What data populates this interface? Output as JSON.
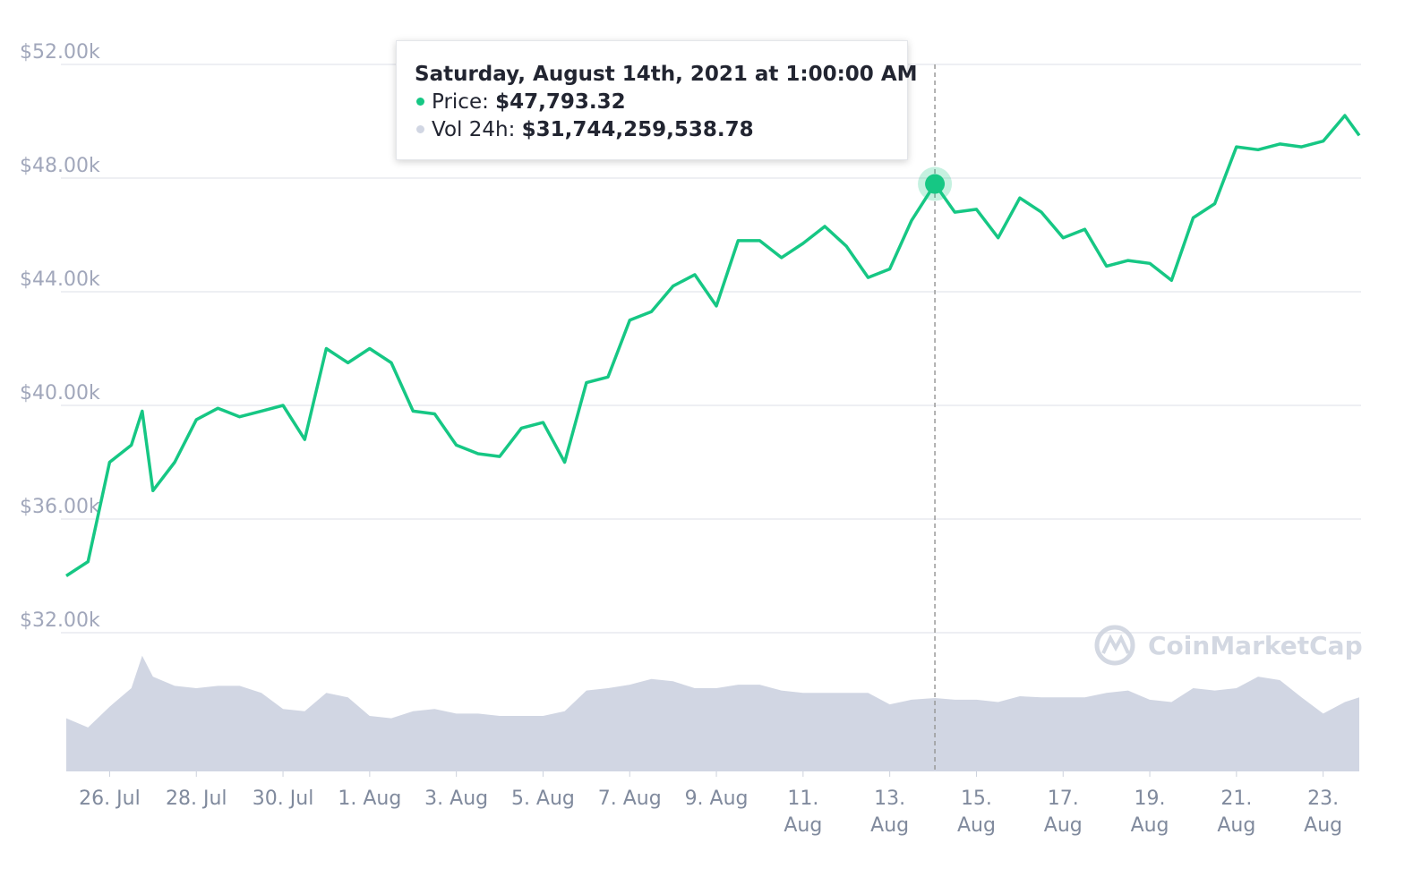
{
  "chart_data": {
    "type": "line",
    "x": [
      "2021-07-25T00:00",
      "2021-07-25T12:00",
      "2021-07-26T00:00",
      "2021-07-26T12:00",
      "2021-07-26T18:00",
      "2021-07-27T00:00",
      "2021-07-27T12:00",
      "2021-07-28T00:00",
      "2021-07-28T12:00",
      "2021-07-29T00:00",
      "2021-07-29T12:00",
      "2021-07-30T00:00",
      "2021-07-30T12:00",
      "2021-07-31T00:00",
      "2021-07-31T12:00",
      "2021-08-01T00:00",
      "2021-08-01T12:00",
      "2021-08-02T00:00",
      "2021-08-02T12:00",
      "2021-08-03T00:00",
      "2021-08-03T12:00",
      "2021-08-04T00:00",
      "2021-08-04T12:00",
      "2021-08-05T00:00",
      "2021-08-05T12:00",
      "2021-08-06T00:00",
      "2021-08-06T12:00",
      "2021-08-07T00:00",
      "2021-08-07T12:00",
      "2021-08-08T00:00",
      "2021-08-08T12:00",
      "2021-08-09T00:00",
      "2021-08-09T12:00",
      "2021-08-10T00:00",
      "2021-08-10T12:00",
      "2021-08-11T00:00",
      "2021-08-11T12:00",
      "2021-08-12T00:00",
      "2021-08-12T12:00",
      "2021-08-13T00:00",
      "2021-08-13T12:00",
      "2021-08-14T01:00",
      "2021-08-14T12:00",
      "2021-08-15T00:00",
      "2021-08-15T12:00",
      "2021-08-16T00:00",
      "2021-08-16T12:00",
      "2021-08-17T00:00",
      "2021-08-17T12:00",
      "2021-08-18T00:00",
      "2021-08-18T12:00",
      "2021-08-19T00:00",
      "2021-08-19T12:00",
      "2021-08-20T00:00",
      "2021-08-20T12:00",
      "2021-08-21T00:00",
      "2021-08-21T12:00",
      "2021-08-22T00:00",
      "2021-08-22T12:00",
      "2021-08-23T00:00",
      "2021-08-23T12:00",
      "2021-08-23T20:00"
    ],
    "series": [
      {
        "name": "Price",
        "color": "#16c784",
        "values": [
          34000,
          34500,
          38000,
          38600,
          39800,
          37000,
          38000,
          39500,
          39900,
          39600,
          39800,
          40000,
          38800,
          42000,
          41500,
          42000,
          41500,
          39800,
          39700,
          38600,
          38300,
          38200,
          39200,
          39400,
          38000,
          40800,
          41000,
          43000,
          43300,
          44200,
          44600,
          43500,
          45800,
          45800,
          45200,
          45700,
          46300,
          45600,
          44500,
          44800,
          46500,
          47793.32,
          46800,
          46900,
          45900,
          47300,
          46800,
          45900,
          46200,
          44900,
          45100,
          45000,
          44400,
          46600,
          47100,
          49100,
          49000,
          49200,
          49100,
          49300,
          50200,
          49500
        ]
      },
      {
        "name": "Vol 24h",
        "color": "#d1d6e3",
        "axis": "y2",
        "values": [
          23000000000,
          19000000000,
          28000000000,
          36000000000,
          50000000000,
          41000000000,
          37000000000,
          36000000000,
          37000000000,
          37000000000,
          34000000000,
          27000000000,
          26000000000,
          34000000000,
          32000000000,
          24000000000,
          23000000000,
          26000000000,
          27000000000,
          25000000000,
          25000000000,
          24000000000,
          24000000000,
          24000000000,
          26000000000,
          35000000000,
          36000000000,
          37500000000,
          40000000000,
          39000000000,
          36000000000,
          36000000000,
          37500000000,
          37500000000,
          35000000000,
          34000000000,
          34000000000,
          34000000000,
          34000000000,
          29000000000,
          31000000000,
          31744259538.78,
          31000000000,
          31000000000,
          30000000000,
          32500000000,
          32000000000,
          32000000000,
          32000000000,
          34000000000,
          35000000000,
          31000000000,
          30000000000,
          36000000000,
          35000000000,
          36000000000,
          41000000000,
          39500000000,
          32000000000,
          25000000000,
          30000000000,
          32000000000
        ]
      }
    ],
    "xlim": [
      "2021-07-24T21:00",
      "2021-08-23T21:00"
    ],
    "xticks": [
      {
        "value": "2021-07-26T00:00",
        "label": "26. Jul"
      },
      {
        "value": "2021-07-28T00:00",
        "label": "28. Jul"
      },
      {
        "value": "2021-07-30T00:00",
        "label": "30. Jul"
      },
      {
        "value": "2021-08-01T00:00",
        "label": "1. Aug"
      },
      {
        "value": "2021-08-03T00:00",
        "label": "3. Aug"
      },
      {
        "value": "2021-08-05T00:00",
        "label": "5. Aug"
      },
      {
        "value": "2021-08-07T00:00",
        "label": "7. Aug"
      },
      {
        "value": "2021-08-09T00:00",
        "label": "9. Aug"
      },
      {
        "value": "2021-08-11T00:00",
        "label": "11. Aug"
      },
      {
        "value": "2021-08-13T00:00",
        "label": "13. Aug"
      },
      {
        "value": "2021-08-15T00:00",
        "label": "15. Aug"
      },
      {
        "value": "2021-08-17T00:00",
        "label": "17. Aug"
      },
      {
        "value": "2021-08-19T00:00",
        "label": "19. Aug"
      },
      {
        "value": "2021-08-21T00:00",
        "label": "21. Aug"
      },
      {
        "value": "2021-08-23T00:00",
        "label": "23. Aug"
      }
    ],
    "ylim": [
      32000,
      52000
    ],
    "yticks": [
      {
        "value": 52000,
        "label": "$52.00k"
      },
      {
        "value": 48000,
        "label": "$48.00k"
      },
      {
        "value": 44000,
        "label": "$44.00k"
      },
      {
        "value": 40000,
        "label": "$40.00k"
      },
      {
        "value": 36000,
        "label": "$36.00k"
      },
      {
        "value": 32000,
        "label": "$32.00k"
      }
    ],
    "y2lim": [
      0,
      60000000000
    ],
    "grid": true,
    "watermark": "CoinMarketCap",
    "tooltip": {
      "x": "2021-08-14T01:00",
      "title": "Saturday, August 14th, 2021 at 1:00:00 AM",
      "price_label": "Price:",
      "price_value": "$47,793.32",
      "volume_label": "Vol 24h:",
      "volume_value": "$31,744,259,538.78"
    }
  }
}
